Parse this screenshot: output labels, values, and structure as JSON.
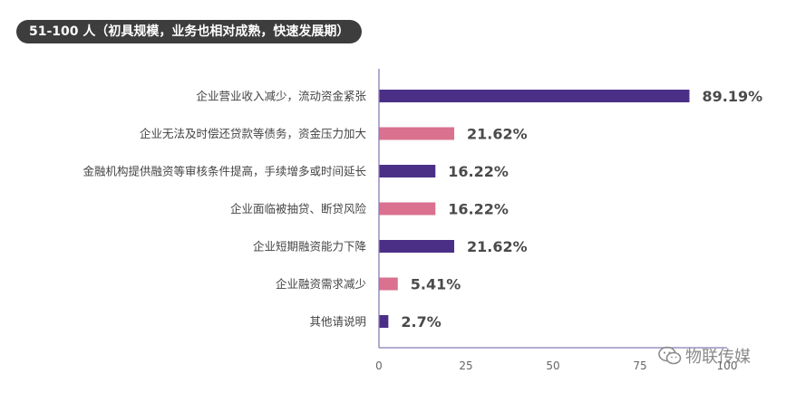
{
  "header": {
    "title": "51-100 人（初具规模，业务也相对成熟，快速发展期）"
  },
  "colors": {
    "purple": "#4b2f87",
    "pink": "#d9718f",
    "axis": "#8a7cb8",
    "label": "#444444",
    "tick": "#666666"
  },
  "chart_data": {
    "type": "bar",
    "orientation": "horizontal",
    "title": "51-100 人（初具规模，业务也相对成熟，快速发展期）",
    "categories": [
      "企业营业收入减少，流动资金紧张",
      "企业无法及时偿还贷款等债务，资金压力加大",
      "金融机构提供融资等审核条件提高，手续增多或时间延长",
      "企业面临被抽贷、断贷风险",
      "企业短期融资能力下降",
      "企业融资需求减少",
      "其他请说明"
    ],
    "values": [
      89.19,
      21.62,
      16.22,
      16.22,
      21.62,
      5.41,
      2.7
    ],
    "value_labels": [
      "89.19%",
      "21.62%",
      "16.22%",
      "16.22%",
      "21.62%",
      "5.41%",
      "2.7%"
    ],
    "bar_colors": [
      "#4b2f87",
      "#d9718f",
      "#4b2f87",
      "#d9718f",
      "#4b2f87",
      "#d9718f",
      "#4b2f87"
    ],
    "xticks": [
      0,
      25,
      50,
      75,
      100
    ],
    "xtick_labels": [
      "0",
      "25",
      "50",
      "75",
      "100"
    ],
    "xlim": [
      0,
      100
    ],
    "grid": false,
    "legend": "none"
  },
  "watermark": {
    "text": "物联传媒",
    "icon": "wechat-icon"
  }
}
